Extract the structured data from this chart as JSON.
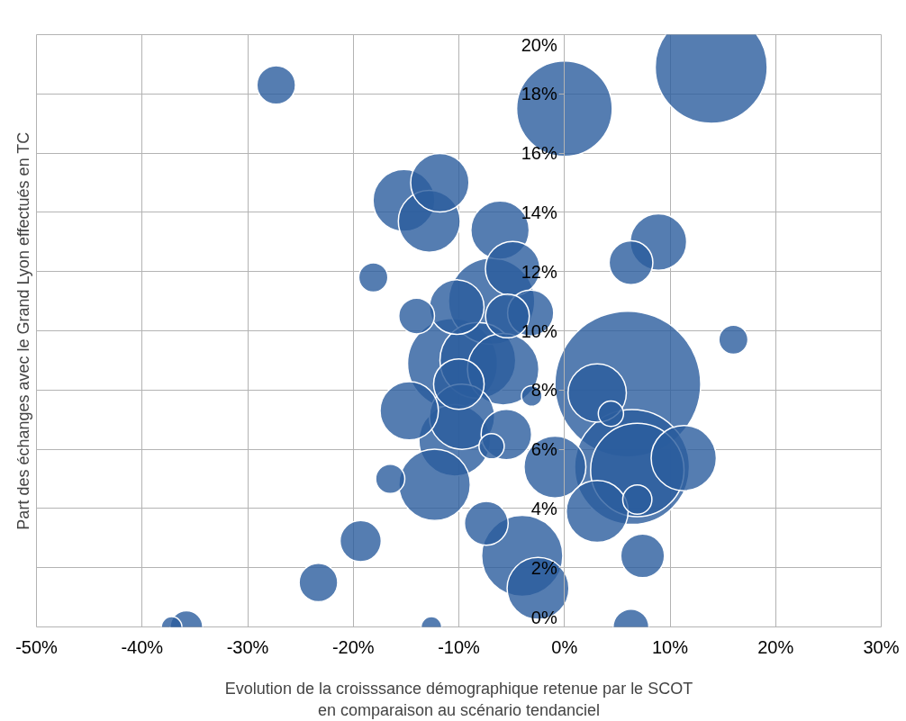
{
  "chart_data": {
    "type": "bubble",
    "xlabel": "Evolution de la croisssance démographique retenue par le SCOT\nen comparaison au scénario tendanciel",
    "ylabel": "Part des échanges avec le Grand Lyon effectués en TC",
    "xlim": [
      -50,
      30
    ],
    "ylim": [
      0,
      20
    ],
    "xticks": [
      {
        "value": -50,
        "label": "-50%"
      },
      {
        "value": -40,
        "label": "-40%"
      },
      {
        "value": -30,
        "label": "-30%"
      },
      {
        "value": -20,
        "label": "-20%"
      },
      {
        "value": -10,
        "label": "-10%"
      },
      {
        "value": 0,
        "label": "0%"
      },
      {
        "value": 10,
        "label": "10%"
      },
      {
        "value": 20,
        "label": "20%"
      },
      {
        "value": 30,
        "label": "30%"
      }
    ],
    "yticks": [
      {
        "value": 0,
        "label": "0%"
      },
      {
        "value": 2,
        "label": "2%"
      },
      {
        "value": 4,
        "label": "4%"
      },
      {
        "value": 6,
        "label": "6%"
      },
      {
        "value": 8,
        "label": "8%"
      },
      {
        "value": 10,
        "label": "10%"
      },
      {
        "value": 12,
        "label": "12%"
      },
      {
        "value": 14,
        "label": "14%"
      },
      {
        "value": 16,
        "label": "16%"
      },
      {
        "value": 18,
        "label": "18%"
      },
      {
        "value": 20,
        "label": "20%"
      }
    ],
    "grid": true,
    "series": [
      {
        "color": "#2b5c9e",
        "x": [
          13.9,
          -27.3,
          0,
          -11.8,
          -15.2,
          -12.8,
          -6.1,
          8.9,
          6.3,
          -18.1,
          -4.9,
          -6.9,
          -10.2,
          -5.4,
          -3.2,
          -14.0,
          16.0,
          -10.6,
          -8.2,
          -5.8,
          6.0,
          -10.0,
          3.1,
          -3.1,
          -14.7,
          -9.7,
          4.4,
          -10.4,
          -5.5,
          -6.9,
          -0.9,
          6.4,
          6.9,
          11.3,
          -12.3,
          -16.5,
          6.9,
          3.1,
          -7.4,
          -19.3,
          -4.0,
          7.4,
          -23.3,
          -2.5,
          -37.2,
          -35.8,
          -12.6,
          6.3
        ],
        "values": [
          18.9,
          18.3,
          17.5,
          15.0,
          14.4,
          13.7,
          13.4,
          13.0,
          12.3,
          11.8,
          12.1,
          11.0,
          10.8,
          10.5,
          10.6,
          10.5,
          9.7,
          8.9,
          9.0,
          8.7,
          8.2,
          8.2,
          7.9,
          7.8,
          7.3,
          7.1,
          7.2,
          6.3,
          6.5,
          6.1,
          5.4,
          5.4,
          5.3,
          5.7,
          4.8,
          5.0,
          4.3,
          3.9,
          3.5,
          2.9,
          2.4,
          2.4,
          1.5,
          1.3,
          0,
          0,
          0,
          0
        ],
        "sizes": [
          0.59,
          0.07,
          0.43,
          0.16,
          0.18,
          0.18,
          0.16,
          0.15,
          0.09,
          0.04,
          0.14,
          0.35,
          0.14,
          0.09,
          0.1,
          0.06,
          0.04,
          0.38,
          0.27,
          0.24,
          1,
          0.12,
          0.16,
          0.02,
          0.16,
          0.2,
          0.03,
          0.24,
          0.12,
          0.03,
          0.18,
          0.62,
          0.41,
          0.2,
          0.24,
          0.04,
          0.04,
          0.18,
          0.09,
          0.08,
          0.31,
          0.09,
          0.07,
          0.18,
          0.02,
          0.05,
          0.02,
          0.06
        ]
      }
    ]
  }
}
